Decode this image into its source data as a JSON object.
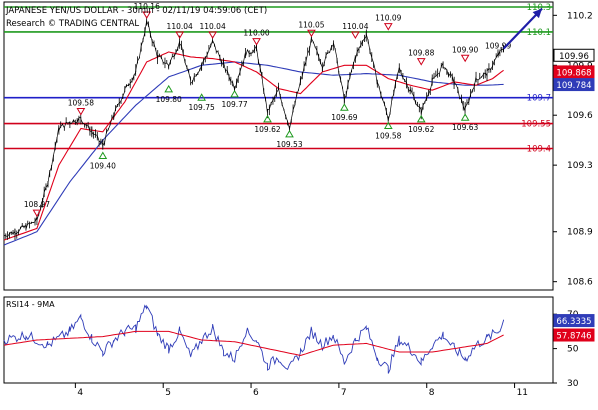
{
  "chart_data": {
    "type": "line",
    "title": "JAPANESE YEN/US DOLLAR - 30min - 02/11/19 04:59:06 (CET)",
    "subtitle": "Research © TRADING CENTRAL",
    "colors": {
      "price": "#000000",
      "ma_fast": "#e0001b",
      "ma_slow": "#2f3cb8",
      "resistance": "#1f9a1f",
      "pivot": "#1f1fc8",
      "support": "#d0001b",
      "arrow": "#1f1fa8",
      "marker_high": "#d0001b",
      "marker_low": "#1f9a1f"
    },
    "main_panel": {
      "ylim": [
        108.55,
        110.28
      ],
      "y_ticks": [
        {
          "value": 110.2,
          "label": "110.2"
        },
        {
          "value": 109.9,
          "label": "109.9"
        },
        {
          "value": 109.6,
          "label": "109.6"
        },
        {
          "value": 109.3,
          "label": "109.3"
        },
        {
          "value": 108.9,
          "label": "108.9"
        },
        {
          "value": 108.6,
          "label": "108.6"
        }
      ],
      "last_price_label": "109.96",
      "levels": [
        {
          "value": 110.25,
          "label": "110.3",
          "kind": "resistance"
        },
        {
          "value": 110.1,
          "label": "110.1",
          "kind": "resistance"
        },
        {
          "value": 109.705,
          "label": "109.7",
          "kind": "pivot"
        },
        {
          "value": 109.55,
          "label": "109.55",
          "kind": "support"
        },
        {
          "value": 109.4,
          "label": "109.4",
          "kind": "support"
        }
      ],
      "ma_labels": [
        {
          "value": 109.86,
          "label": "109.868",
          "kind": "ma_fast"
        },
        {
          "value": 109.784,
          "label": "109.784",
          "kind": "ma_slow"
        }
      ],
      "price_anchors": [
        [
          0,
          108.88
        ],
        [
          2,
          108.9
        ],
        [
          4,
          108.93
        ],
        [
          6,
          108.97
        ],
        [
          8,
          109.2
        ],
        [
          10,
          109.52
        ],
        [
          12,
          109.56
        ],
        [
          14,
          109.58
        ],
        [
          16,
          109.5
        ],
        [
          18,
          109.42
        ],
        [
          20,
          109.6
        ],
        [
          22,
          109.75
        ],
        [
          24,
          109.86
        ],
        [
          26,
          110.16
        ],
        [
          28,
          109.95
        ],
        [
          30,
          109.9
        ],
        [
          32,
          110.04
        ],
        [
          34,
          109.8
        ],
        [
          36,
          109.9
        ],
        [
          38,
          110.04
        ],
        [
          40,
          109.9
        ],
        [
          42,
          109.77
        ],
        [
          44,
          109.97
        ],
        [
          46,
          110.0
        ],
        [
          48,
          109.62
        ],
        [
          50,
          109.75
        ],
        [
          52,
          109.53
        ],
        [
          54,
          109.8
        ],
        [
          56,
          110.05
        ],
        [
          58,
          109.9
        ],
        [
          60,
          110.04
        ],
        [
          62,
          109.69
        ],
        [
          64,
          109.95
        ],
        [
          66,
          110.09
        ],
        [
          68,
          109.8
        ],
        [
          70,
          109.58
        ],
        [
          72,
          109.88
        ],
        [
          74,
          109.75
        ],
        [
          76,
          109.62
        ],
        [
          78,
          109.8
        ],
        [
          80,
          109.9
        ],
        [
          82,
          109.8
        ],
        [
          84,
          109.63
        ],
        [
          86,
          109.82
        ],
        [
          88,
          109.85
        ],
        [
          90,
          109.96
        ],
        [
          91,
          110.0
        ]
      ],
      "ma_fast_anchors": [
        [
          0,
          108.85
        ],
        [
          6,
          108.92
        ],
        [
          10,
          109.3
        ],
        [
          14,
          109.52
        ],
        [
          18,
          109.5
        ],
        [
          22,
          109.68
        ],
        [
          26,
          109.92
        ],
        [
          30,
          109.98
        ],
        [
          34,
          109.95
        ],
        [
          38,
          109.94
        ],
        [
          42,
          109.92
        ],
        [
          46,
          109.86
        ],
        [
          50,
          109.76
        ],
        [
          54,
          109.73
        ],
        [
          58,
          109.86
        ],
        [
          62,
          109.9
        ],
        [
          66,
          109.9
        ],
        [
          70,
          109.82
        ],
        [
          74,
          109.78
        ],
        [
          78,
          109.75
        ],
        [
          82,
          109.8
        ],
        [
          86,
          109.78
        ],
        [
          89,
          109.82
        ],
        [
          91,
          109.87
        ]
      ],
      "ma_slow_anchors": [
        [
          0,
          108.82
        ],
        [
          6,
          108.9
        ],
        [
          12,
          109.2
        ],
        [
          18,
          109.45
        ],
        [
          24,
          109.66
        ],
        [
          30,
          109.83
        ],
        [
          36,
          109.9
        ],
        [
          42,
          109.92
        ],
        [
          48,
          109.9
        ],
        [
          54,
          109.86
        ],
        [
          60,
          109.84
        ],
        [
          66,
          109.85
        ],
        [
          72,
          109.84
        ],
        [
          78,
          109.8
        ],
        [
          84,
          109.78
        ],
        [
          88,
          109.78
        ],
        [
          91,
          109.785
        ]
      ],
      "peaks": [
        {
          "label": "110.16",
          "x": 26,
          "value": 110.16
        },
        {
          "label": "110.04",
          "x": 32,
          "value": 110.04
        },
        {
          "label": "110.04",
          "x": 38,
          "value": 110.04
        },
        {
          "label": "110.00",
          "x": 46,
          "value": 110.0
        },
        {
          "label": "110.05",
          "x": 56,
          "value": 110.05
        },
        {
          "label": "110.04",
          "x": 64,
          "value": 110.04
        },
        {
          "label": "110.09",
          "x": 70,
          "value": 110.09
        },
        {
          "label": "109.88",
          "x": 76,
          "value": 109.88
        },
        {
          "label": "109.90",
          "x": 84,
          "value": 109.9
        },
        {
          "label": "108.97",
          "x": 6,
          "value": 108.97
        },
        {
          "label": "109.58",
          "x": 14,
          "value": 109.58
        }
      ],
      "troughs": [
        {
          "label": "109.40",
          "x": 18,
          "value": 109.4
        },
        {
          "label": "109.80",
          "x": 30,
          "value": 109.8
        },
        {
          "label": "109.75",
          "x": 36,
          "value": 109.75
        },
        {
          "label": "109.77",
          "x": 42,
          "value": 109.77
        },
        {
          "label": "109.62",
          "x": 48,
          "value": 109.62
        },
        {
          "label": "109.53",
          "x": 52,
          "value": 109.53
        },
        {
          "label": "109.69",
          "x": 62,
          "value": 109.69
        },
        {
          "label": "109.58",
          "x": 70,
          "value": 109.58
        },
        {
          "label": "109.62",
          "x": 76,
          "value": 109.62
        },
        {
          "label": "109.63",
          "x": 84,
          "value": 109.63
        }
      ],
      "end_label": {
        "label": "109.99",
        "x": 90,
        "value": 109.99
      },
      "forecast_arrow": {
        "from": [
          91,
          110.0
        ],
        "to": [
          98,
          110.24
        ]
      }
    },
    "rsi_panel": {
      "title": "RSI14 - 9MA",
      "ylim": [
        30,
        80
      ],
      "y_ticks": [
        {
          "value": 70,
          "label": "70"
        },
        {
          "value": 50,
          "label": "50"
        },
        {
          "value": 30,
          "label": "30"
        }
      ],
      "last_rsi_label": "66.3335",
      "last_ma_label": "57.8746",
      "rsi_anchors": [
        [
          0,
          55
        ],
        [
          4,
          58
        ],
        [
          8,
          52
        ],
        [
          12,
          60
        ],
        [
          14,
          68
        ],
        [
          16,
          56
        ],
        [
          18,
          48
        ],
        [
          20,
          55
        ],
        [
          22,
          60
        ],
        [
          24,
          62
        ],
        [
          26,
          75
        ],
        [
          28,
          58
        ],
        [
          30,
          50
        ],
        [
          32,
          60
        ],
        [
          34,
          45
        ],
        [
          36,
          55
        ],
        [
          38,
          62
        ],
        [
          40,
          48
        ],
        [
          42,
          44
        ],
        [
          44,
          60
        ],
        [
          46,
          55
        ],
        [
          48,
          40
        ],
        [
          50,
          45
        ],
        [
          52,
          38
        ],
        [
          54,
          48
        ],
        [
          56,
          60
        ],
        [
          58,
          52
        ],
        [
          60,
          58
        ],
        [
          62,
          42
        ],
        [
          64,
          55
        ],
        [
          66,
          62
        ],
        [
          68,
          45
        ],
        [
          70,
          38
        ],
        [
          72,
          55
        ],
        [
          74,
          50
        ],
        [
          76,
          42
        ],
        [
          78,
          52
        ],
        [
          80,
          58
        ],
        [
          82,
          50
        ],
        [
          84,
          44
        ],
        [
          86,
          52
        ],
        [
          88,
          56
        ],
        [
          90,
          60
        ],
        [
          91,
          66.3
        ]
      ],
      "ma_anchors": [
        [
          0,
          52
        ],
        [
          6,
          55
        ],
        [
          12,
          56
        ],
        [
          18,
          57
        ],
        [
          24,
          60
        ],
        [
          30,
          60
        ],
        [
          36,
          55
        ],
        [
          42,
          54
        ],
        [
          48,
          50
        ],
        [
          54,
          46
        ],
        [
          60,
          52
        ],
        [
          66,
          53
        ],
        [
          72,
          48
        ],
        [
          78,
          48
        ],
        [
          84,
          51
        ],
        [
          88,
          53
        ],
        [
          91,
          57.9
        ]
      ]
    },
    "x_axis": {
      "range": [
        0,
        100
      ],
      "ticks": [
        {
          "x": 13,
          "label": "4"
        },
        {
          "x": 29,
          "label": "5"
        },
        {
          "x": 45,
          "label": "6"
        },
        {
          "x": 61,
          "label": "7"
        },
        {
          "x": 77,
          "label": "8"
        },
        {
          "x": 93,
          "label": "11"
        }
      ]
    }
  }
}
